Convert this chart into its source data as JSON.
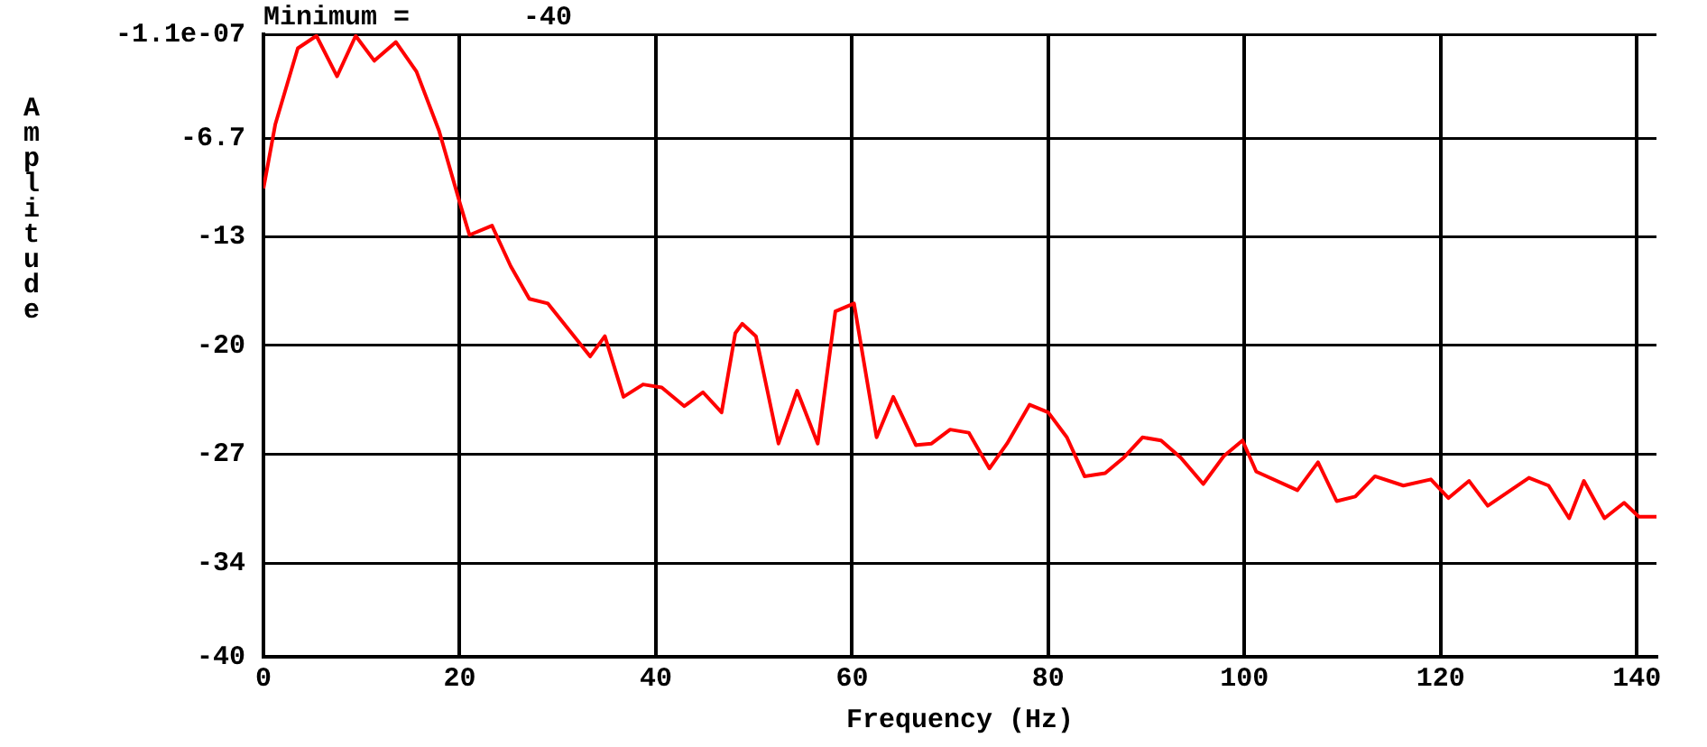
{
  "chart_data": {
    "type": "line",
    "xlabel": "Frequency (Hz)",
    "ylabel": "Amplitude",
    "annotations": [
      "Minimum =       -40"
    ],
    "xlim": [
      0,
      142
    ],
    "xticks": [
      0,
      20,
      40,
      60,
      80,
      100,
      120,
      140
    ],
    "ylim": [
      -40,
      -1.1e-07
    ],
    "yticks": [
      -40,
      -34,
      -27,
      -20,
      -13,
      -6.7,
      {
        "value": -1.1e-07,
        "label": "-1.1e-07"
      }
    ],
    "grid": true,
    "legend": false,
    "marker": "none",
    "line_style": "solid",
    "series": [
      {
        "color": "#ff0000",
        "x": [
          0,
          1.2,
          3.5,
          5.4,
          7.5,
          9.4,
          11.3,
          13.5,
          15.6,
          17.9,
          20,
          21,
          23.3,
          25.2,
          27.1,
          29,
          33.3,
          34.8,
          36.7,
          38.7,
          40.6,
          42.9,
          44.8,
          46.7,
          48.1,
          48.8,
          50.2,
          52.5,
          54.4,
          56.5,
          58.3,
          60.2,
          62.5,
          64.2,
          66.5,
          68.1,
          70,
          71.9,
          74,
          75.8,
          78.1,
          80,
          81.9,
          83.7,
          85.8,
          87.7,
          89.6,
          91.5,
          93.5,
          95.8,
          97.9,
          99.8,
          101.2,
          105.4,
          107.5,
          109.4,
          111.3,
          113.3,
          116.2,
          119,
          120.8,
          122.9,
          124.8,
          129,
          131,
          133.1,
          134.6,
          136.7,
          138.7,
          140.2,
          142
        ],
        "values": [
          -9.9,
          -5.8,
          -0.9,
          -0.1,
          -2.7,
          -0.1,
          -1.7,
          -0.5,
          -2.4,
          -6.2,
          -10.8,
          -12.9,
          -12.3,
          -14.9,
          -17,
          -17.3,
          -20.7,
          -19.4,
          -23.3,
          -22.5,
          -22.7,
          -23.9,
          -23,
          -24.3,
          -19.2,
          -18.6,
          -19.4,
          -26.3,
          -22.9,
          -26.3,
          -17.8,
          -17.3,
          -25.9,
          -23.3,
          -26.4,
          -26.3,
          -25.4,
          -25.6,
          -27.9,
          -26.3,
          -23.8,
          -24.3,
          -25.9,
          -28.4,
          -28.2,
          -27.2,
          -25.9,
          -26.1,
          -27.2,
          -28.9,
          -27.1,
          -26.1,
          -28.1,
          -29.3,
          -27.5,
          -30,
          -29.7,
          -28.4,
          -29,
          -28.6,
          -29.8,
          -28.7,
          -30.3,
          -28.5,
          -29,
          -31.1,
          -28.7,
          -31.1,
          -30.1,
          -31,
          -31
        ]
      }
    ]
  }
}
